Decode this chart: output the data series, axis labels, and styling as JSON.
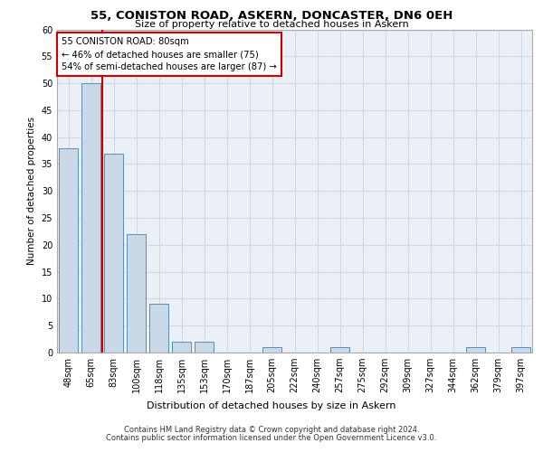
{
  "title1": "55, CONISTON ROAD, ASKERN, DONCASTER, DN6 0EH",
  "title2": "Size of property relative to detached houses in Askern",
  "xlabel": "Distribution of detached houses by size in Askern",
  "ylabel": "Number of detached properties",
  "footer1": "Contains HM Land Registry data © Crown copyright and database right 2024.",
  "footer2": "Contains public sector information licensed under the Open Government Licence v3.0.",
  "annotation_line1": "55 CONISTON ROAD: 80sqm",
  "annotation_line2": "← 46% of detached houses are smaller (75)",
  "annotation_line3": "54% of semi-detached houses are larger (87) →",
  "bar_labels": [
    "48sqm",
    "65sqm",
    "83sqm",
    "100sqm",
    "118sqm",
    "135sqm",
    "153sqm",
    "170sqm",
    "187sqm",
    "205sqm",
    "222sqm",
    "240sqm",
    "257sqm",
    "275sqm",
    "292sqm",
    "309sqm",
    "327sqm",
    "344sqm",
    "362sqm",
    "379sqm",
    "397sqm"
  ],
  "bar_values": [
    38,
    50,
    37,
    22,
    9,
    2,
    2,
    0,
    0,
    1,
    0,
    0,
    1,
    0,
    0,
    0,
    0,
    0,
    1,
    0,
    1
  ],
  "bar_color": "#c9d9e8",
  "bar_edge_color": "#5b8db8",
  "highlight_line_color": "#cc0000",
  "annotation_box_color": "#cc0000",
  "grid_color": "#d0d8e4",
  "background_color": "#eaf0f6",
  "ylim": [
    0,
    60
  ],
  "yticks": [
    0,
    5,
    10,
    15,
    20,
    25,
    30,
    35,
    40,
    45,
    50,
    55,
    60
  ]
}
